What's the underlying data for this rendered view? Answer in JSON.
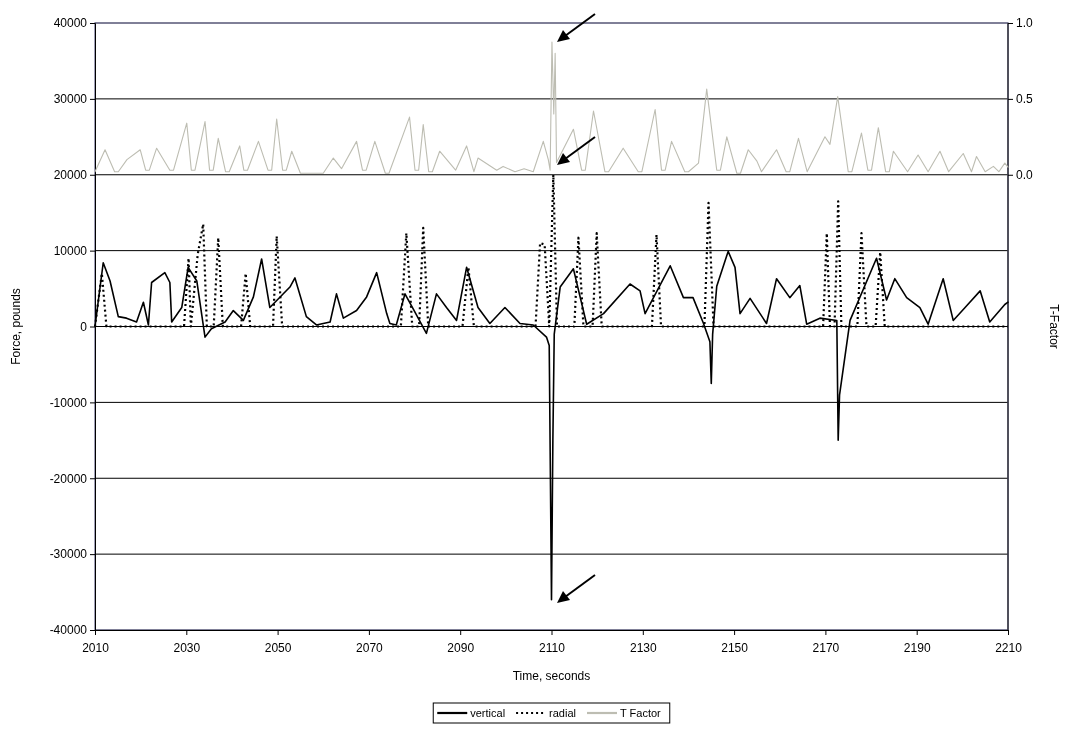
{
  "chart_data": {
    "type": "line",
    "xlabel": "Time, seconds",
    "ylabel": "Force, pounds",
    "y2label": "T-Factor",
    "xlim": [
      2010,
      2210
    ],
    "xticks": [
      2010,
      2030,
      2050,
      2070,
      2090,
      2110,
      2130,
      2150,
      2170,
      2190,
      2210
    ],
    "ylim": [
      -40000,
      40000
    ],
    "yticks": [
      -40000,
      -30000,
      -20000,
      -10000,
      0,
      10000,
      20000,
      30000,
      40000
    ],
    "y2lim": [
      -3,
      1
    ],
    "y2ticks": [
      {
        "value": 0,
        "label": "0.0"
      },
      0.5,
      {
        "value": 1,
        "label": "1.0"
      }
    ],
    "grid": "y",
    "legend": "bottom",
    "series": [
      {
        "name": "vertical",
        "color": "#000000",
        "line_style": "solid",
        "x": [
          2010,
          2011.8,
          2013.3,
          2015.1,
          2016.9,
          2019.1,
          2020.6,
          2021.7,
          2022.4,
          2025.3,
          2026.4,
          2026.8,
          2029,
          2030.4,
          2032.3,
          2034.1,
          2035.5,
          2038.5,
          2040.3,
          2042.5,
          2044.7,
          2046.5,
          2048.3,
          2052.7,
          2053.8,
          2056.3,
          2058.5,
          2061.5,
          2062.9,
          2064.4,
          2067.3,
          2069.5,
          2071.7,
          2073.9,
          2074.6,
          2076,
          2077.9,
          2080,
          2082.6,
          2084.8,
          2087,
          2089.2,
          2091.4,
          2093.9,
          2096.5,
          2099.8,
          2103.1,
          2106,
          2108.9,
          2109.5,
          2110,
          2110.3,
          2110.6,
          2111.9,
          2114.8,
          2117.7,
          2121.4,
          2127.2,
          2129.4,
          2130.5,
          2136,
          2138.9,
          2141,
          2143.3,
          2144.7,
          2145,
          2145.3,
          2146.2,
          2148.7,
          2150.2,
          2151.3,
          2153.5,
          2157.1,
          2159.3,
          2162.2,
          2164.4,
          2165.9,
          2168.8,
          2172.5,
          2172.8,
          2173.1,
          2175.4,
          2181.2,
          2183.4,
          2185.2,
          2187.8,
          2190.7,
          2192.5,
          2195.8,
          2198,
          2200.6,
          2203.9,
          2206,
          2209.3,
          2210
        ],
        "values": [
          0,
          8400,
          6000,
          1300,
          1100,
          600,
          3200,
          200,
          5800,
          7100,
          5800,
          600,
          2500,
          7800,
          6000,
          -1400,
          -300,
          600,
          2100,
          800,
          3900,
          8900,
          2500,
          5200,
          6400,
          1300,
          200,
          600,
          4300,
          1100,
          2100,
          3900,
          7100,
          1700,
          400,
          200,
          4300,
          2000,
          -900,
          4300,
          2500,
          800,
          7800,
          2500,
          400,
          2500,
          400,
          200,
          -1400,
          -2500,
          -36000,
          -15000,
          -1000,
          5200,
          7600,
          300,
          1700,
          5600,
          4700,
          1700,
          8000,
          3800,
          3800,
          400,
          -2000,
          -7500,
          -1000,
          5300,
          9900,
          7800,
          1700,
          3700,
          400,
          6300,
          3800,
          5400,
          300,
          1100,
          800,
          -15000,
          -9000,
          800,
          9000,
          3500,
          6300,
          3800,
          2500,
          300,
          6300,
          800,
          2500,
          4700,
          600,
          2900,
          3200
        ]
      },
      {
        "name": "radial",
        "color": "#000000",
        "line_style": "dotted",
        "x": [
          2010,
          2011.5,
          2012.5,
          2029.5,
          2030.5,
          2031,
          2032.5,
          2033.7,
          2034.5,
          2036,
          2037,
          2038,
          2042,
          2043,
          2044,
          2049,
          2049.8,
          2051,
          2077,
          2078.2,
          2079.5,
          2081,
          2081.9,
          2083,
          2090.5,
          2091.8,
          2093,
          2106.5,
          2107.5,
          2108.5,
          2109.5,
          2110.4,
          2111.2,
          2115,
          2115.9,
          2117,
          2119,
          2119.9,
          2121,
          2132,
          2133,
          2134,
          2143.5,
          2144.4,
          2145.5,
          2169.5,
          2170.3,
          2171,
          2172,
          2172.8,
          2173.5,
          2177,
          2177.9,
          2179,
          2181,
          2182,
          2183,
          2210
        ],
        "values": [
          0,
          7000,
          0,
          0,
          9000,
          0,
          9500,
          13500,
          0,
          0,
          11700,
          0,
          0,
          7000,
          0,
          0,
          11900,
          0,
          0,
          12300,
          0,
          0,
          13000,
          0,
          0,
          7800,
          0,
          0,
          11000,
          10800,
          0,
          20000,
          0,
          0,
          11700,
          0,
          0,
          12300,
          0,
          0,
          12100,
          0,
          0,
          16300,
          0,
          0,
          12300,
          0,
          0,
          16500,
          0,
          0,
          12300,
          0,
          0,
          9800,
          0,
          0
        ]
      },
      {
        "name": "T Factor",
        "color": "#bdbdb2",
        "line_style": "solid",
        "axis": "y2",
        "x": [
          2010,
          2012.2,
          2014.3,
          2015.1,
          2017,
          2019.9,
          2021.1,
          2021.9,
          2023.5,
          2026.4,
          2027.2,
          2030.1,
          2031.1,
          2031.9,
          2034.1,
          2035.1,
          2035.9,
          2037,
          2038.6,
          2039.4,
          2041.7,
          2042.6,
          2043.4,
          2045.8,
          2047.9,
          2048.7,
          2049.8,
          2051.1,
          2051.9,
          2053.1,
          2055,
          2060,
          2062.2,
          2064,
          2067.3,
          2068.6,
          2069.4,
          2071.3,
          2073.6,
          2074.4,
          2078.9,
          2080.1,
          2080.9,
          2081.9,
          2083.1,
          2083.9,
          2085.5,
          2089,
          2091.4,
          2093,
          2093.9,
          2098,
          2099.4,
          2102,
          2104,
          2106,
          2108.2,
          2109.3,
          2109.7,
          2110.1,
          2110.5,
          2110.8,
          2111.1,
          2114.8,
          2116.6,
          2117.4,
          2119.2,
          2121.7,
          2122.5,
          2125.7,
          2129,
          2129.8,
          2132.7,
          2134.1,
          2134.9,
          2136.3,
          2139.2,
          2140,
          2142.2,
          2144,
          2146.2,
          2147,
          2148.4,
          2150.6,
          2151.4,
          2153.1,
          2155,
          2156,
          2159.3,
          2161.4,
          2162.2,
          2164.1,
          2166,
          2169.9,
          2171,
          2172.7,
          2175,
          2175.8,
          2177.9,
          2179.3,
          2180.1,
          2181.6,
          2183.2,
          2184,
          2184.9,
          2188,
          2190.3,
          2192.5,
          2195.1,
          2197,
          2200.2,
          2202,
          2203.1,
          2205,
          2206.8,
          2208,
          2209.3,
          2210
        ],
        "values": [
          0.02,
          0.165,
          0.02,
          0.02,
          0.1,
          0.165,
          0.03,
          0.03,
          0.175,
          0.03,
          0.03,
          0.34,
          0.03,
          0.03,
          0.35,
          0.03,
          0.03,
          0.24,
          0.02,
          0.02,
          0.19,
          0.03,
          0.03,
          0.22,
          0.03,
          0.03,
          0.367,
          0.03,
          0.03,
          0.155,
          0.01,
          0.01,
          0.11,
          0.04,
          0.22,
          0.03,
          0.03,
          0.22,
          0.01,
          0.01,
          0.38,
          0.03,
          0.03,
          0.33,
          0.02,
          0.02,
          0.155,
          0.03,
          0.19,
          0.02,
          0.11,
          0.03,
          0.055,
          0.02,
          0.04,
          0.02,
          0.22,
          0.1,
          0.03,
          0.875,
          0.4,
          0.8,
          0.08,
          0.3,
          0.03,
          0.03,
          0.42,
          0.02,
          0.02,
          0.175,
          0.02,
          0.02,
          0.43,
          0.03,
          0.03,
          0.22,
          0.02,
          0.02,
          0.077,
          0.564,
          0.03,
          0.03,
          0.25,
          0.01,
          0.01,
          0.165,
          0.09,
          0.02,
          0.165,
          0.02,
          0.02,
          0.24,
          0.02,
          0.25,
          0.2,
          0.515,
          0.02,
          0.02,
          0.275,
          0.03,
          0.03,
          0.31,
          0.02,
          0.02,
          0.155,
          0.02,
          0.13,
          0.02,
          0.155,
          0.02,
          0.14,
          0.02,
          0.12,
          0.02,
          0.055,
          0.02,
          0.077,
          0.05
        ]
      }
    ]
  }
}
